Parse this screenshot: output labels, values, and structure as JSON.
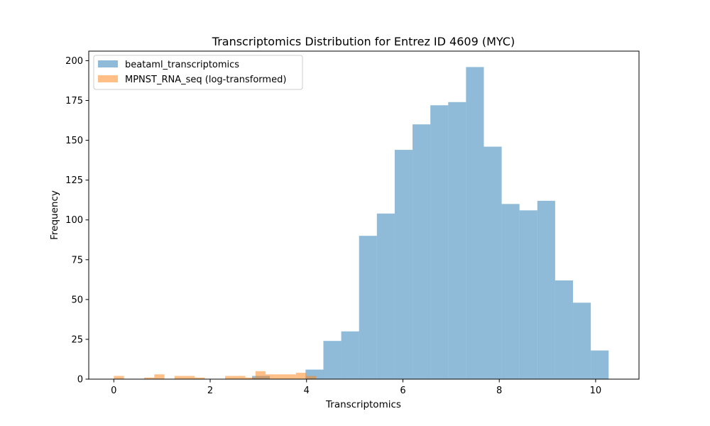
{
  "chart_data": {
    "type": "bar",
    "title": "Transcriptomics Distribution for Entrez ID 4609 (MYC)",
    "xlabel": "Transcriptomics",
    "ylabel": "Frequency",
    "xlim": [
      -0.52,
      10.9
    ],
    "ylim": [
      0,
      206
    ],
    "xticks": [
      0,
      2,
      4,
      6,
      8,
      10
    ],
    "yticks": [
      0,
      25,
      50,
      75,
      100,
      125,
      150,
      175,
      200
    ],
    "grid": false,
    "legend_position": "top-left",
    "series": [
      {
        "name": "beataml_transcriptomics",
        "color": "#1f77b4",
        "alpha": 0.5,
        "bins": [
          {
            "x0": 2.87,
            "x1": 3.24,
            "count": 2
          },
          {
            "x0": 3.24,
            "x1": 3.61,
            "count": 0
          },
          {
            "x0": 3.61,
            "x1": 3.98,
            "count": 0
          },
          {
            "x0": 3.98,
            "x1": 4.35,
            "count": 6
          },
          {
            "x0": 4.35,
            "x1": 4.72,
            "count": 24
          },
          {
            "x0": 4.72,
            "x1": 5.09,
            "count": 30
          },
          {
            "x0": 5.09,
            "x1": 5.46,
            "count": 90
          },
          {
            "x0": 5.46,
            "x1": 5.83,
            "count": 104
          },
          {
            "x0": 5.83,
            "x1": 6.2,
            "count": 144
          },
          {
            "x0": 6.2,
            "x1": 6.57,
            "count": 160
          },
          {
            "x0": 6.57,
            "x1": 6.94,
            "count": 172
          },
          {
            "x0": 6.94,
            "x1": 7.31,
            "count": 174
          },
          {
            "x0": 7.31,
            "x1": 7.68,
            "count": 196
          },
          {
            "x0": 7.68,
            "x1": 8.05,
            "count": 146
          },
          {
            "x0": 8.05,
            "x1": 8.42,
            "count": 110
          },
          {
            "x0": 8.42,
            "x1": 8.79,
            "count": 106
          },
          {
            "x0": 8.79,
            "x1": 9.16,
            "count": 112
          },
          {
            "x0": 9.16,
            "x1": 9.53,
            "count": 62
          },
          {
            "x0": 9.53,
            "x1": 9.9,
            "count": 48
          },
          {
            "x0": 9.9,
            "x1": 10.27,
            "count": 18
          }
        ]
      },
      {
        "name": "MPNST_RNA_seq (log-transformed)",
        "color": "#ff7f0e",
        "alpha": 0.5,
        "bins": [
          {
            "x0": 0.0,
            "x1": 0.21,
            "count": 2
          },
          {
            "x0": 0.63,
            "x1": 0.84,
            "count": 1
          },
          {
            "x0": 0.84,
            "x1": 1.05,
            "count": 3
          },
          {
            "x0": 1.26,
            "x1": 1.47,
            "count": 2
          },
          {
            "x0": 1.47,
            "x1": 1.68,
            "count": 2
          },
          {
            "x0": 1.68,
            "x1": 1.89,
            "count": 1
          },
          {
            "x0": 2.31,
            "x1": 2.52,
            "count": 2
          },
          {
            "x0": 2.52,
            "x1": 2.73,
            "count": 2
          },
          {
            "x0": 2.73,
            "x1": 2.94,
            "count": 1
          },
          {
            "x0": 2.94,
            "x1": 3.15,
            "count": 5
          },
          {
            "x0": 3.15,
            "x1": 3.36,
            "count": 3
          },
          {
            "x0": 3.36,
            "x1": 3.57,
            "count": 3
          },
          {
            "x0": 3.57,
            "x1": 3.78,
            "count": 3
          },
          {
            "x0": 3.78,
            "x1": 3.99,
            "count": 4
          },
          {
            "x0": 3.99,
            "x1": 4.2,
            "count": 2
          }
        ]
      }
    ]
  }
}
